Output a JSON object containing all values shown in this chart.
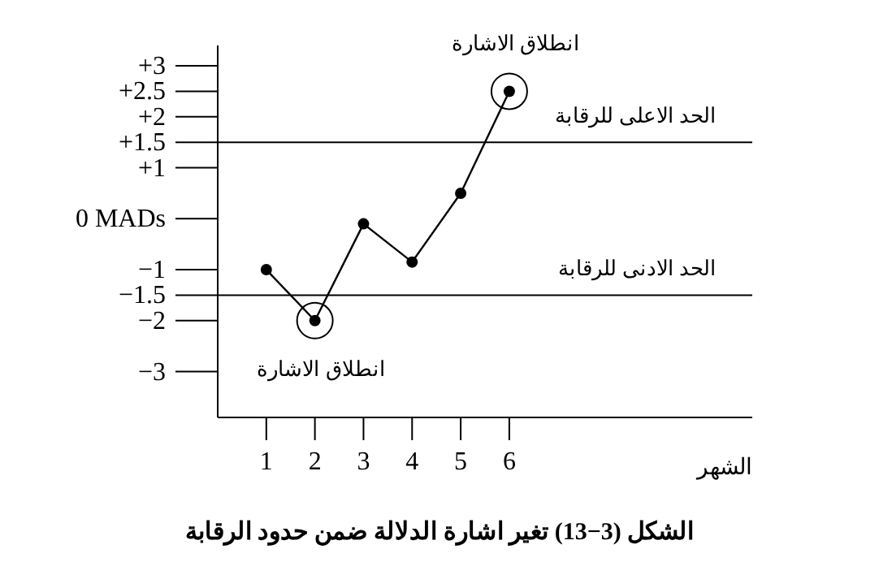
{
  "chart_data": {
    "type": "line",
    "title": "الشكل (3−13) تغير اشارة الدلالة ضمن حدود الرقابة",
    "xlabel": "الشهر",
    "x": [
      1,
      2,
      3,
      4,
      5,
      6
    ],
    "series": [
      {
        "color": "#000000",
        "values": [
          -1,
          -2,
          -0.1,
          -0.85,
          0.5,
          2.5
        ]
      }
    ],
    "xlim": [
      0,
      11
    ],
    "xticks": [
      1,
      2,
      3,
      4,
      5,
      6
    ],
    "ylim": [
      -3.9,
      3.4
    ],
    "yticks": [
      {
        "value": 3,
        "label": "+3"
      },
      {
        "value": 2.5,
        "label": "+2.5"
      },
      {
        "value": 2,
        "label": "+2"
      },
      {
        "value": 1.5,
        "label": "+1.5"
      },
      {
        "value": 1,
        "label": "+1"
      },
      {
        "value": 0,
        "label": "0 MADs"
      },
      {
        "value": -1,
        "label": "−1"
      },
      {
        "value": -1.5,
        "label": "−1.5"
      },
      {
        "value": -2,
        "label": "−2"
      },
      {
        "value": -3,
        "label": "−3"
      }
    ],
    "ref_lines": [
      {
        "axis": "y",
        "value": 1.5,
        "label": "الحد الاعلى للرقابة",
        "color": "#000000"
      },
      {
        "axis": "y",
        "value": -1.5,
        "label": "الحد الادنى للرقابة",
        "color": "#000000"
      }
    ],
    "annotations": [
      {
        "text": "انطلاق الاشارة",
        "x": 2,
        "y": -2
      },
      {
        "text": "انطلاق الاشارة",
        "x": 6,
        "y": 2.5
      }
    ],
    "grid": false,
    "legend": false,
    "marker": "circle",
    "line_style": "solid"
  }
}
